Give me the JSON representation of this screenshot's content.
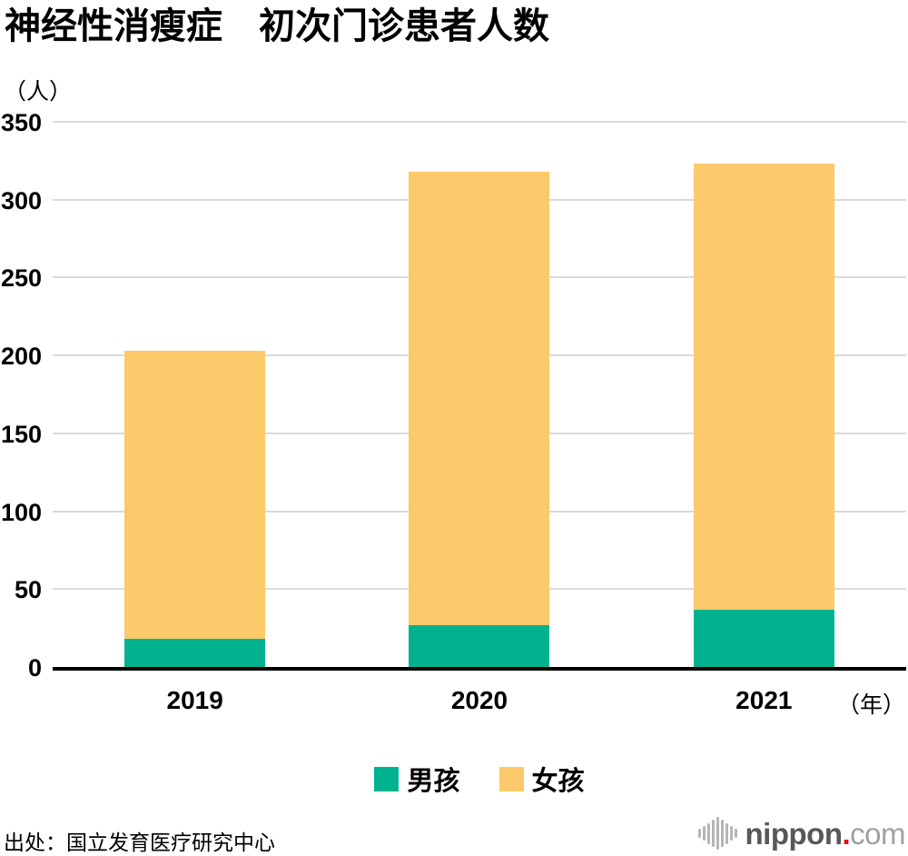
{
  "title": "神经性消瘦症　初次门诊患者人数",
  "y_axis_unit": "（人）",
  "x_axis_unit": "（年）",
  "source": "出处：国立发育医疗研究中心",
  "brand": {
    "bold": "nippon",
    "dot": ".",
    "rest": "com"
  },
  "colors": {
    "boys_teal": "#00b38e",
    "girls_yellow": "#fcc96b",
    "grid": "#dadada",
    "axis": "#000000",
    "logo_dark": "#57585b",
    "logo_red": "#e60012",
    "logo_light": "#a0a1a3",
    "logo_bars": "#b5b5b5"
  },
  "chart_data": {
    "type": "bar",
    "stacked": true,
    "title": "神经性消瘦症　初次门诊患者人数",
    "ylabel": "（人）",
    "xlabel": "（年）",
    "categories": [
      "2019",
      "2020",
      "2021"
    ],
    "series": [
      {
        "name": "男孩",
        "color": "#00b38e",
        "values": [
          18,
          27,
          37
        ]
      },
      {
        "name": "女孩",
        "color": "#fcc96b",
        "values": [
          185,
          291,
          286
        ]
      }
    ],
    "stack_totals": [
      203,
      318,
      323
    ],
    "ylim": [
      0,
      350
    ],
    "y_ticks": [
      0,
      50,
      100,
      150,
      200,
      250,
      300,
      350
    ],
    "grid": true,
    "legend_position": "bottom"
  }
}
